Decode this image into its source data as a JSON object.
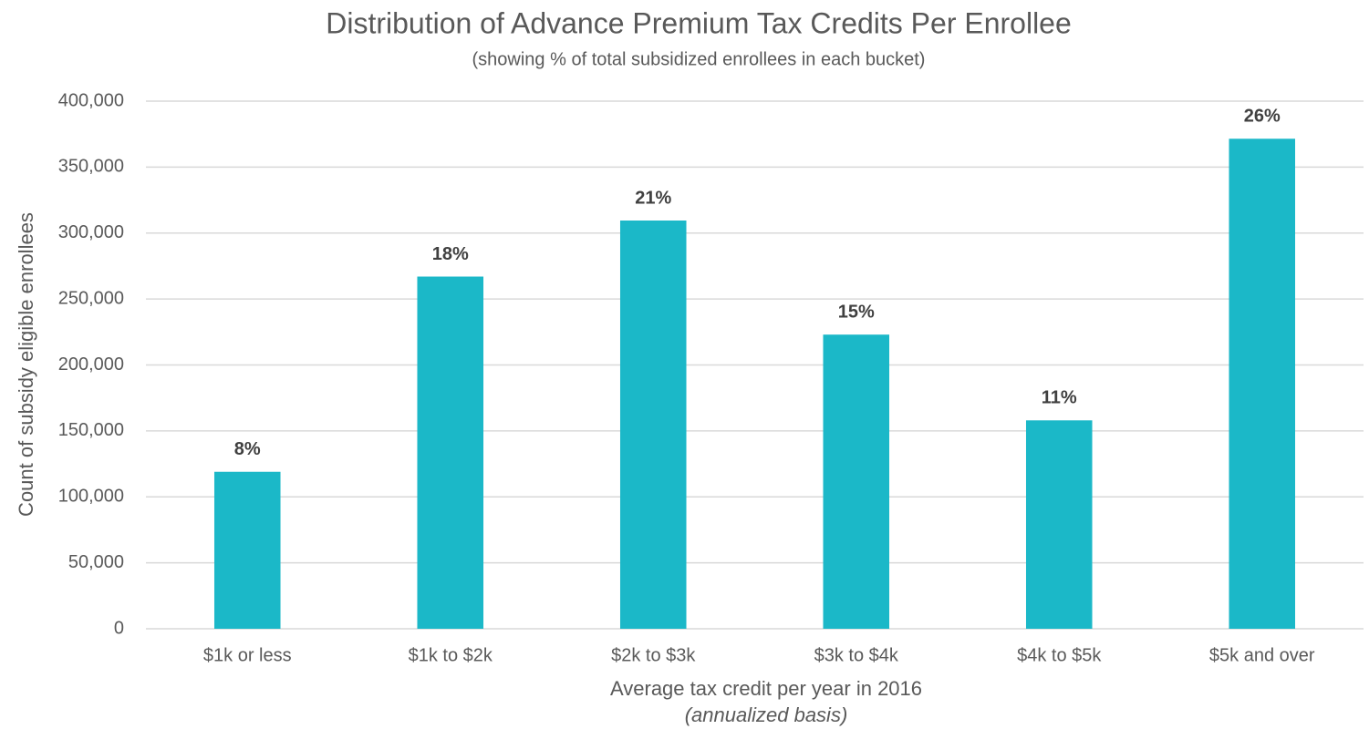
{
  "chart_data": {
    "type": "bar",
    "title": "Distribution of Advance Premium Tax Credits Per Enrollee",
    "subtitle": "(showing % of total subsidized enrollees in each bucket)",
    "x_label": "Average tax credit per year in 2016",
    "x_label_note": "(annualized basis)",
    "y_label": "Count of subsidy eligible enrollees",
    "categories": [
      "$1k or less",
      "$1k to $2k",
      "$2k to $3k",
      "$3k to $4k",
      "$4k to $5k",
      "$5k and over"
    ],
    "values": [
      119000,
      267000,
      309500,
      223000,
      158000,
      371500
    ],
    "bar_labels": [
      "8%",
      "18%",
      "21%",
      "15%",
      "11%",
      "26%"
    ],
    "color": "#1bb8c8",
    "ylim": [
      0,
      400000
    ],
    "yticks": [
      0,
      {
        "value": 50000,
        "label": "50,000"
      },
      {
        "value": 100000,
        "label": "100,000"
      },
      {
        "value": 150000,
        "label": "150,000"
      },
      {
        "value": 200000,
        "label": "200,000"
      },
      {
        "value": 250000,
        "label": "250,000"
      },
      {
        "value": 300000,
        "label": "300,000"
      },
      {
        "value": 350000,
        "label": "350,000"
      },
      {
        "value": 400000,
        "label": "400,000"
      }
    ],
    "grid": true
  }
}
